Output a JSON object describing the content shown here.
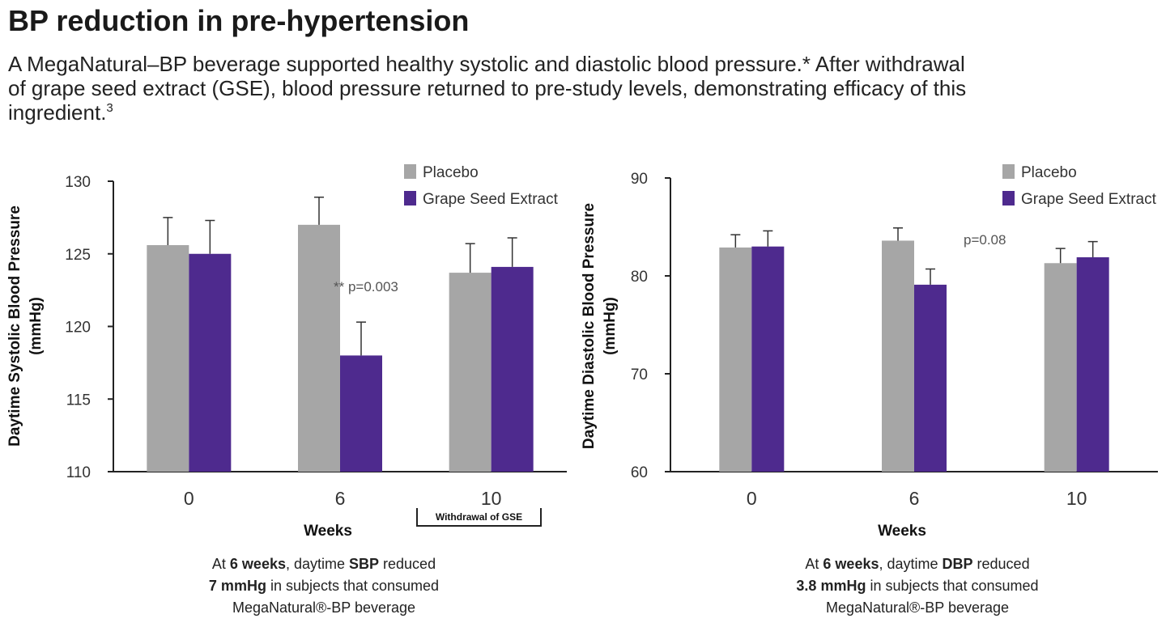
{
  "header": {
    "title": "BP reduction in pre-hypertension",
    "subtitle_lines": [
      "A MegaNatural–BP beverage supported healthy systolic and diastolic blood pressure.* After withdrawal",
      "of grape seed extract (GSE), blood pressure returned to pre-study levels, demonstrating efficacy of this",
      "ingredient."
    ],
    "footnote_mark": "3"
  },
  "chart_data": [
    {
      "type": "bar",
      "x_label": "Weeks",
      "y_label": [
        "Daytime Systolic Blood Pressure",
        "(mmHg)"
      ],
      "categories": [
        "0",
        "6",
        "10"
      ],
      "series": [
        {
          "name": "Placebo",
          "color": "#a6a6a6",
          "values": [
            125.6,
            127.0,
            123.7
          ],
          "errors": [
            1.9,
            1.9,
            2.0
          ]
        },
        {
          "name": "Grape Seed Extract",
          "color": "#4e2a8e",
          "values": [
            125.0,
            118.0,
            124.1
          ],
          "errors": [
            2.3,
            2.3,
            2.0
          ]
        }
      ],
      "ylim": [
        110,
        130
      ],
      "yticks": [
        110,
        115,
        120,
        125,
        130
      ],
      "grid": false,
      "annotations": [
        {
          "text": "** p=0.003"
        }
      ],
      "bracket_label": "Withdrawal of GSE",
      "caption": [
        [
          {
            "text": "At "
          },
          {
            "text": "6 weeks",
            "bold": true
          },
          {
            "text": ", daytime "
          },
          {
            "text": "SBP",
            "bold": true
          },
          {
            "text": " reduced"
          }
        ],
        [
          {
            "text": "7 mmHg",
            "bold": true
          },
          {
            "text": " in subjects that consumed"
          }
        ],
        [
          {
            "text": "MegaNatural®-BP beverage"
          }
        ]
      ]
    },
    {
      "type": "bar",
      "x_label": "Weeks",
      "y_label": [
        "Daytime Diastolic Blood Pressure",
        "(mmHg)"
      ],
      "categories": [
        "0",
        "6",
        "10"
      ],
      "series": [
        {
          "name": "Placebo",
          "color": "#a6a6a6",
          "values": [
            82.9,
            83.6,
            81.3
          ],
          "errors": [
            1.3,
            1.3,
            1.5
          ]
        },
        {
          "name": "Grape Seed Extract",
          "color": "#4e2a8e",
          "values": [
            83.0,
            79.1,
            81.9
          ],
          "errors": [
            1.6,
            1.6,
            1.6
          ]
        }
      ],
      "ylim": [
        60,
        90
      ],
      "yticks": [
        60,
        70,
        80,
        90
      ],
      "grid": false,
      "annotations": [
        {
          "text": "p=0.08"
        }
      ],
      "caption": [
        [
          {
            "text": "At "
          },
          {
            "text": "6 weeks",
            "bold": true
          },
          {
            "text": ", daytime "
          },
          {
            "text": "DBP",
            "bold": true
          },
          {
            "text": " reduced"
          }
        ],
        [
          {
            "text": "3.8 mmHg",
            "bold": true
          },
          {
            "text": " in subjects that consumed"
          }
        ],
        [
          {
            "text": "MegaNatural®-BP beverage"
          }
        ]
      ]
    }
  ]
}
